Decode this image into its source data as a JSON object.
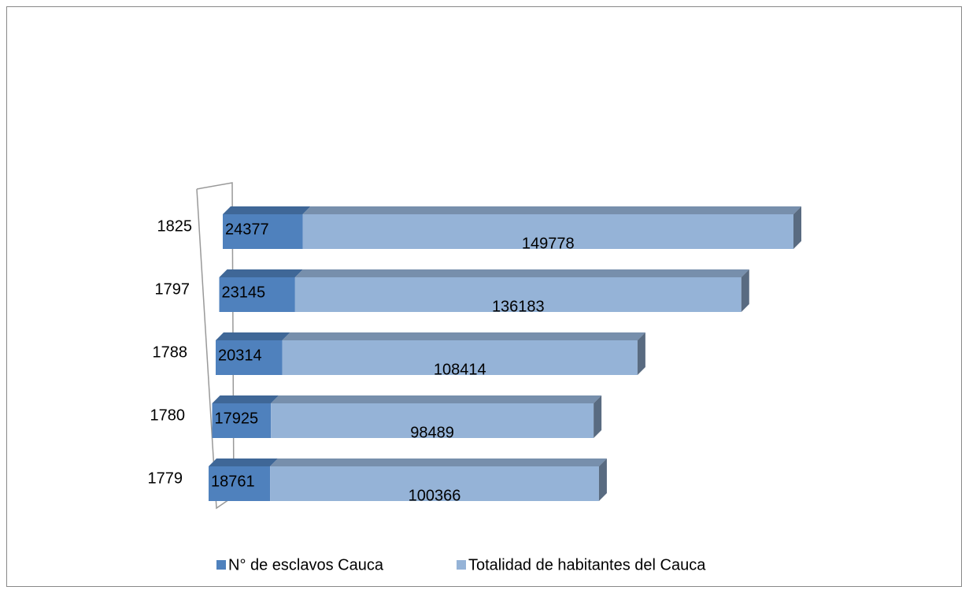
{
  "chart_data": {
    "type": "bar3d_stacked_horizontal",
    "categories": [
      "1779",
      "1780",
      "1788",
      "1797",
      "1825"
    ],
    "series": [
      {
        "name": "N° de esclavos Cauca",
        "color": "#4f81bd",
        "values": [
          18761,
          17925,
          20314,
          23145,
          24377
        ]
      },
      {
        "name": "Totalidad de habitantes del Cauca",
        "color": "#95b3d7",
        "values": [
          100366,
          98489,
          108414,
          136183,
          149778
        ]
      }
    ],
    "legend": "bottom"
  }
}
